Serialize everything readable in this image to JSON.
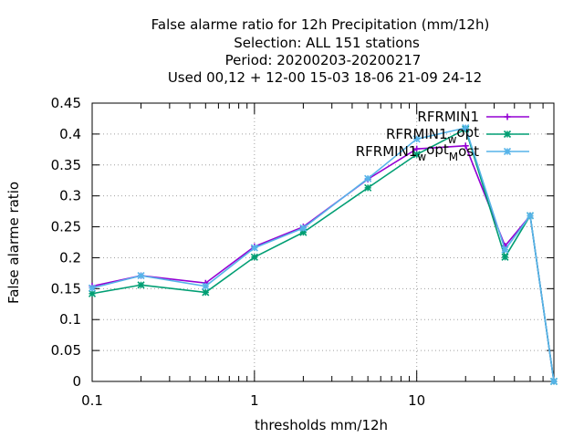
{
  "chart_data": {
    "type": "line",
    "title_lines": [
      "False alarme ratio  for 12h Precipitation (mm/12h)",
      "Selection: ALL    151 stations",
      "Period: 20200203-20200217",
      "Used  00,12  + 12-00 15-03 18-06 21-09 24-12"
    ],
    "xlabel": "thresholds mm/12h",
    "ylabel": "False alarme ratio",
    "x_scale": "log",
    "xlim": [
      0.1,
      70
    ],
    "ylim": [
      0,
      0.45
    ],
    "grid": true,
    "legend_position": "top-right",
    "x_ticks": [
      {
        "value": 0.1,
        "label": "0.1"
      },
      {
        "value": 1,
        "label": "1"
      },
      {
        "value": 10,
        "label": "10"
      }
    ],
    "x_minor_ticks": [
      0.2,
      0.3,
      0.4,
      0.5,
      0.6,
      0.7,
      0.8,
      0.9,
      2,
      3,
      4,
      5,
      6,
      7,
      8,
      9,
      20,
      30,
      40,
      50,
      60,
      70
    ],
    "y_ticks": [
      {
        "value": 0,
        "label": "0"
      },
      {
        "value": 0.05,
        "label": "0.05"
      },
      {
        "value": 0.1,
        "label": "0.1"
      },
      {
        "value": 0.15,
        "label": "0.15"
      },
      {
        "value": 0.2,
        "label": "0.2"
      },
      {
        "value": 0.25,
        "label": "0.25"
      },
      {
        "value": 0.3,
        "label": "0.3"
      },
      {
        "value": 0.35,
        "label": "0.35"
      },
      {
        "value": 0.4,
        "label": "0.4"
      },
      {
        "value": 0.45,
        "label": "0.45"
      }
    ],
    "x": [
      0.1,
      0.2,
      0.5,
      1,
      2,
      5,
      10,
      20,
      35,
      50,
      70
    ],
    "series": [
      {
        "name": "RFRMIN1",
        "name_parts": {
          "main": "RFRMIN1",
          "sub": "",
          "sub2": ""
        },
        "color": "#9400d3",
        "marker": "plus",
        "values": [
          0.154,
          0.171,
          0.159,
          0.218,
          0.25,
          0.327,
          0.376,
          0.381,
          0.219,
          0.268,
          0.0
        ]
      },
      {
        "name": "RFRMIN1_w_opt",
        "name_parts": {
          "main": "RFRMIN1",
          "sub": "w",
          "sub2": "opt"
        },
        "color": "#009e73",
        "marker": "cross",
        "values": [
          0.142,
          0.156,
          0.144,
          0.201,
          0.241,
          0.313,
          0.367,
          0.408,
          0.201,
          0.268,
          0.0
        ]
      },
      {
        "name": "RFRMIN1_w_opt_M_ost",
        "name_parts": {
          "main": "RFRMIN1",
          "sub": "w",
          "sub2": "opt",
          "sub3": "M",
          "sub4": "ost"
        },
        "color": "#56b4e9",
        "marker": "star",
        "values": [
          0.151,
          0.171,
          0.154,
          0.216,
          0.248,
          0.328,
          0.392,
          0.41,
          0.213,
          0.268,
          0.0
        ]
      }
    ]
  }
}
